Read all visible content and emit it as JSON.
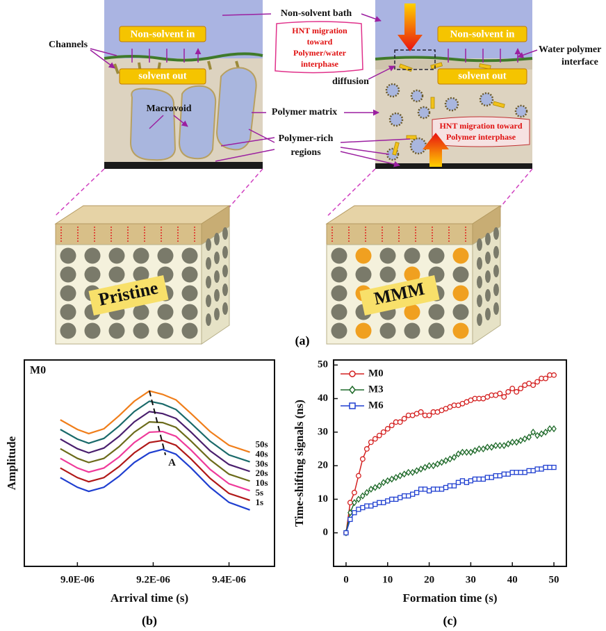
{
  "figure": {
    "non_solvent_bath": "Non-solvent bath",
    "left_panel": {
      "non_solvent_in": "Non-solvent in",
      "solvent_out": "solvent out",
      "channels": "Channels",
      "macrovoid": "Macrovoid"
    },
    "right_panel": {
      "non_solvent_in": "Non-solvent in",
      "solvent_out": "solvent out",
      "hnt_top": [
        "HNT migration",
        "toward",
        "Polymer/water",
        "interphase"
      ],
      "diffusion": "diffusion",
      "water_polymer_interface": [
        "Water polymer",
        "interface"
      ],
      "hnt_bottom": [
        "HNT migration toward",
        "Polymer interphase"
      ]
    },
    "polymer_matrix": "Polymer matrix",
    "polymer_rich_regions": [
      "Polymer-rich",
      "regions"
    ],
    "cube_labels": [
      "Pristine",
      "MMM"
    ],
    "panel_label": "(a)"
  },
  "chart_data": [
    {
      "type": "line",
      "panel_label": "(b)",
      "inset_label": "M0",
      "annotation": "A",
      "x_label": "Arrival time (s)",
      "y_label": "Amplitude",
      "x": [
        8.955e-06,
        9e-06,
        9.03e-06,
        9.07e-06,
        9.11e-06,
        9.15e-06,
        9.19e-06,
        9.225e-06,
        9.26e-06,
        9.3e-06,
        9.35e-06,
        9.4e-06,
        9.455e-06
      ],
      "xlim": [
        8.86e-06,
        9.52e-06
      ],
      "ylim": [
        0,
        300
      ],
      "xticks": [
        {
          "value": 9e-06,
          "label": "9.0E-06"
        },
        {
          "value": 9.2e-06,
          "label": "9.2E-06"
        },
        {
          "value": 9.4e-06,
          "label": "9.4E-06"
        }
      ],
      "series": [
        {
          "name": "1s",
          "color": "#1f3fd0",
          "values": [
            129,
            115,
            109,
            115,
            131,
            151,
            165,
            170,
            163,
            143,
            115,
            93,
            82
          ]
        },
        {
          "name": "5s",
          "color": "#b01818",
          "values": [
            143,
            129,
            123,
            129,
            145,
            165,
            180,
            183,
            176,
            156,
            128,
            106,
            96
          ]
        },
        {
          "name": "10s",
          "color": "#ef3a9a",
          "values": [
            157,
            143,
            137,
            143,
            159,
            180,
            195,
            196,
            189,
            169,
            141,
            120,
            110
          ]
        },
        {
          "name": "20s",
          "color": "#6b6b1a",
          "values": [
            171,
            157,
            151,
            157,
            174,
            195,
            210,
            209,
            202,
            182,
            155,
            134,
            124
          ]
        },
        {
          "name": "30s",
          "color": "#4a1f6e",
          "values": [
            185,
            171,
            165,
            172,
            189,
            210,
            225,
            222,
            215,
            195,
            168,
            148,
            138
          ]
        },
        {
          "name": "40s",
          "color": "#1a6a6a",
          "values": [
            199,
            185,
            179,
            186,
            204,
            225,
            240,
            236,
            228,
            208,
            182,
            162,
            152
          ]
        },
        {
          "name": "50s",
          "color": "#f07e1a",
          "values": [
            213,
            199,
            193,
            200,
            219,
            240,
            255,
            250,
            242,
            222,
            196,
            176,
            166
          ]
        }
      ]
    },
    {
      "type": "line",
      "panel_label": "(c)",
      "x_label": "Formation time (s)",
      "y_label": "Time-shifting signals (ns)",
      "x": [
        0,
        1,
        2,
        3,
        4,
        5,
        6,
        7,
        8,
        9,
        10,
        11,
        12,
        13,
        14,
        15,
        16,
        17,
        18,
        19,
        20,
        21,
        22,
        23,
        24,
        25,
        26,
        27,
        28,
        29,
        30,
        31,
        32,
        33,
        34,
        35,
        36,
        37,
        38,
        39,
        40,
        41,
        42,
        43,
        44,
        45,
        46,
        47,
        48,
        49,
        50
      ],
      "xlim": [
        -3,
        53
      ],
      "ylim": [
        -10,
        51.5
      ],
      "xticks": [
        0,
        10,
        20,
        30,
        40,
        50
      ],
      "yticks": [
        0,
        10,
        20,
        30,
        40,
        50
      ],
      "legend": "upper left",
      "series": [
        {
          "name": "M0",
          "color": "#d42020",
          "marker": "circle",
          "values": [
            0,
            9,
            12,
            17,
            22,
            25,
            27,
            28,
            29,
            30,
            31,
            32,
            33,
            33,
            34,
            35,
            35,
            35.5,
            36,
            35,
            35,
            36,
            36,
            36.5,
            37,
            37.5,
            38,
            38,
            38.5,
            39,
            39.5,
            40,
            40,
            40,
            40.5,
            41,
            41,
            41.5,
            40.5,
            42,
            43,
            42,
            43,
            44,
            44.5,
            44,
            45,
            46,
            46,
            47,
            47
          ]
        },
        {
          "name": "M3",
          "color": "#1f6a2a",
          "marker": "diamond",
          "values": [
            0,
            6,
            9,
            10,
            11,
            12,
            13,
            13.5,
            14,
            15,
            15.5,
            16,
            16.5,
            17,
            17.5,
            18,
            18,
            18.5,
            19,
            19.5,
            20,
            20,
            20.5,
            21,
            21.5,
            22,
            22.5,
            23.5,
            24,
            24,
            24,
            24.5,
            25,
            25,
            25.5,
            25.5,
            26,
            26,
            26,
            26.5,
            27,
            27,
            27.5,
            28,
            28.5,
            30,
            29,
            29.5,
            30,
            31,
            31
          ]
        },
        {
          "name": "M6",
          "color": "#1f3fd0",
          "marker": "square",
          "values": [
            0,
            4,
            6,
            7,
            7.5,
            8,
            8,
            8.5,
            9,
            9,
            9.5,
            10,
            10,
            10.5,
            11,
            11,
            11.5,
            12,
            13,
            13,
            12.5,
            13,
            13,
            13,
            13.5,
            14,
            14,
            15,
            15.5,
            15,
            15.5,
            16,
            16,
            16,
            16.5,
            16.5,
            17,
            17,
            17.5,
            17.5,
            18,
            18,
            18,
            18,
            18.5,
            18.5,
            19,
            19,
            19.5,
            19.5,
            19.5
          ]
        }
      ]
    }
  ]
}
